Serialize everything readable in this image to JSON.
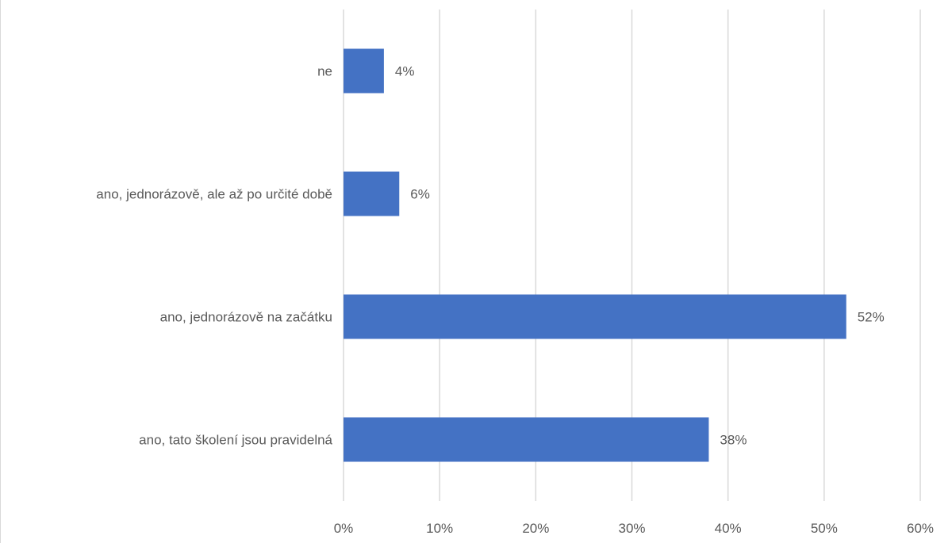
{
  "chart_data": {
    "type": "bar",
    "orientation": "horizontal",
    "categories": [
      "ne",
      "ano, jednorázově, ale až po určité době",
      "ano, jednorázově na začátku",
      "ano, tato školení jsou pravidelná"
    ],
    "values": [
      4.2,
      5.8,
      52.3,
      38.0
    ],
    "data_labels": [
      "4%",
      "6%",
      "52%",
      "38%"
    ],
    "x_ticks": [
      "0%",
      "10%",
      "20%",
      "30%",
      "40%",
      "50%",
      "60%"
    ],
    "xlim": [
      0,
      60
    ],
    "grid": true,
    "bar_color": "#4472c4",
    "grid_color": "#d9d9d9"
  }
}
